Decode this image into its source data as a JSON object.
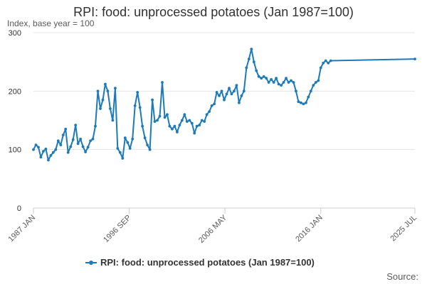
{
  "chart_data": {
    "type": "line",
    "title": "RPI: food: unprocessed potatoes (Jan 1987=100)",
    "subtitle": "Index, base year = 100",
    "xlabel": "",
    "ylabel": "",
    "source": "Source:",
    "ylim": [
      0,
      300
    ],
    "yticks": [
      0,
      100,
      200,
      300
    ],
    "xlim": [
      "1987-01",
      "2025-07"
    ],
    "xticks": [
      {
        "date": "1987-01",
        "label": "1987 JAN"
      },
      {
        "date": "1996-09",
        "label": "1996 SEP"
      },
      {
        "date": "2006-05",
        "label": "2006 MAY"
      },
      {
        "date": "2016-01",
        "label": "2016 JAN"
      },
      {
        "date": "2025-07",
        "label": "2025 JUL"
      }
    ],
    "grid": true,
    "legend_position": "bottom",
    "series": [
      {
        "name": "RPI: food: unprocessed potatoes (Jan 1987=100)",
        "color": "#1c7ab9",
        "points": [
          [
            "1987-01",
            100
          ],
          [
            "1987-04",
            108
          ],
          [
            "1987-07",
            104
          ],
          [
            "1987-10",
            87
          ],
          [
            "1988-01",
            97
          ],
          [
            "1988-04",
            101
          ],
          [
            "1988-07",
            82
          ],
          [
            "1988-10",
            90
          ],
          [
            "1989-01",
            95
          ],
          [
            "1989-04",
            100
          ],
          [
            "1989-07",
            115
          ],
          [
            "1989-10",
            108
          ],
          [
            "1990-01",
            125
          ],
          [
            "1990-04",
            135
          ],
          [
            "1990-07",
            95
          ],
          [
            "1990-10",
            105
          ],
          [
            "1991-01",
            117
          ],
          [
            "1991-04",
            142
          ],
          [
            "1991-07",
            110
          ],
          [
            "1991-10",
            118
          ],
          [
            "1992-01",
            105
          ],
          [
            "1992-04",
            96
          ],
          [
            "1992-07",
            104
          ],
          [
            "1992-10",
            115
          ],
          [
            "1993-01",
            118
          ],
          [
            "1993-04",
            140
          ],
          [
            "1993-07",
            200
          ],
          [
            "1993-10",
            170
          ],
          [
            "1994-01",
            185
          ],
          [
            "1994-04",
            212
          ],
          [
            "1994-07",
            200
          ],
          [
            "1994-10",
            170
          ],
          [
            "1995-01",
            150
          ],
          [
            "1995-04",
            205
          ],
          [
            "1995-07",
            102
          ],
          [
            "1995-10",
            95
          ],
          [
            "1996-01",
            85
          ],
          [
            "1996-04",
            120
          ],
          [
            "1996-07",
            112
          ],
          [
            "1996-10",
            102
          ],
          [
            "1997-01",
            118
          ],
          [
            "1997-04",
            175
          ],
          [
            "1997-07",
            198
          ],
          [
            "1997-10",
            172
          ],
          [
            "1998-01",
            140
          ],
          [
            "1998-04",
            120
          ],
          [
            "1998-07",
            108
          ],
          [
            "1998-10",
            100
          ],
          [
            "1999-01",
            185
          ],
          [
            "1999-04",
            148
          ],
          [
            "1999-07",
            150
          ],
          [
            "1999-10",
            157
          ],
          [
            "2000-01",
            215
          ],
          [
            "2000-04",
            155
          ],
          [
            "2000-07",
            160
          ],
          [
            "2000-10",
            140
          ],
          [
            "2001-01",
            135
          ],
          [
            "2001-04",
            140
          ],
          [
            "2001-07",
            130
          ],
          [
            "2001-10",
            142
          ],
          [
            "2002-01",
            150
          ],
          [
            "2002-04",
            160
          ],
          [
            "2002-07",
            148
          ],
          [
            "2002-10",
            150
          ],
          [
            "2003-01",
            145
          ],
          [
            "2003-04",
            128
          ],
          [
            "2003-07",
            140
          ],
          [
            "2003-10",
            142
          ],
          [
            "2004-01",
            150
          ],
          [
            "2004-04",
            148
          ],
          [
            "2004-07",
            160
          ],
          [
            "2004-10",
            165
          ],
          [
            "2005-01",
            175
          ],
          [
            "2005-04",
            178
          ],
          [
            "2005-07",
            198
          ],
          [
            "2005-10",
            192
          ],
          [
            "2006-01",
            200
          ],
          [
            "2006-04",
            185
          ],
          [
            "2006-07",
            195
          ],
          [
            "2006-10",
            205
          ],
          [
            "2007-01",
            195
          ],
          [
            "2007-04",
            200
          ],
          [
            "2007-07",
            210
          ],
          [
            "2007-10",
            180
          ],
          [
            "2008-01",
            192
          ],
          [
            "2008-04",
            200
          ],
          [
            "2008-07",
            240
          ],
          [
            "2008-10",
            255
          ],
          [
            "2009-01",
            272
          ],
          [
            "2009-04",
            250
          ],
          [
            "2009-07",
            235
          ],
          [
            "2009-10",
            225
          ],
          [
            "2010-01",
            222
          ],
          [
            "2010-04",
            225
          ],
          [
            "2010-07",
            222
          ],
          [
            "2010-10",
            215
          ],
          [
            "2011-01",
            220
          ],
          [
            "2011-04",
            215
          ],
          [
            "2011-07",
            222
          ],
          [
            "2011-10",
            212
          ],
          [
            "2012-01",
            210
          ],
          [
            "2012-04",
            215
          ],
          [
            "2012-07",
            222
          ],
          [
            "2012-10",
            215
          ],
          [
            "2013-01",
            218
          ],
          [
            "2013-04",
            215
          ],
          [
            "2013-07",
            200
          ],
          [
            "2013-10",
            182
          ],
          [
            "2014-01",
            180
          ],
          [
            "2014-04",
            178
          ],
          [
            "2014-07",
            180
          ],
          [
            "2014-10",
            190
          ],
          [
            "2015-01",
            200
          ],
          [
            "2015-04",
            210
          ],
          [
            "2015-07",
            215
          ],
          [
            "2015-10",
            218
          ],
          [
            "2016-01",
            240
          ],
          [
            "2016-04",
            248
          ],
          [
            "2016-07",
            252
          ],
          [
            "2016-10",
            248
          ],
          [
            "2017-01",
            252
          ],
          [
            "2025-07",
            255
          ]
        ]
      }
    ]
  }
}
